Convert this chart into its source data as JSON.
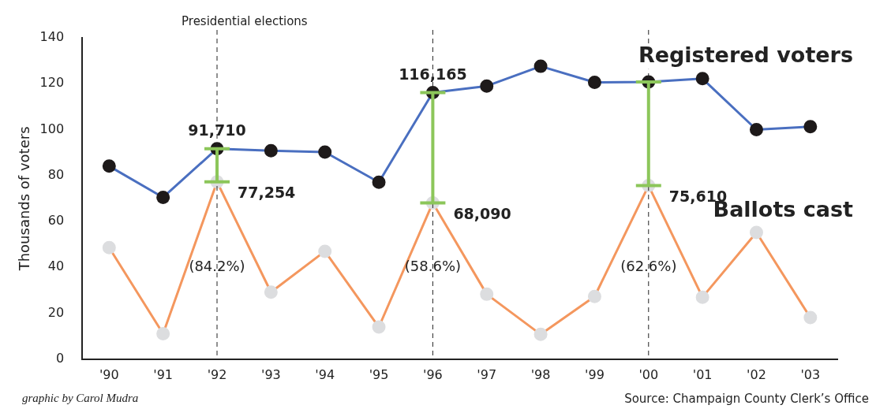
{
  "chart_data": {
    "type": "line",
    "ylabel": "Thousands of voters",
    "categories": [
      "'90",
      "'91",
      "'92",
      "'93",
      "'94",
      "'95",
      "'96",
      "'97",
      "'98",
      "'99",
      "'00",
      "'01",
      "'02",
      "'03"
    ],
    "series": [
      {
        "name": "Registered voters",
        "color": "#4a6fc0",
        "values": [
          84.1,
          70.5,
          91.71,
          90.8,
          90.2,
          77.1,
          116.165,
          119,
          127.6,
          120.6,
          120.8,
          122.2,
          100,
          101.3
        ]
      },
      {
        "name": "Ballots cast",
        "color": "#f4975e",
        "values": [
          48.6,
          11.1,
          77.254,
          29.2,
          47,
          14,
          68.09,
          28.3,
          10.8,
          27.3,
          75.61,
          27,
          55.2,
          18.1
        ],
        "errors": [
          null,
          null,
          [
            77.254,
            91.71
          ],
          null,
          null,
          null,
          [
            68.09,
            116.165
          ],
          null,
          null,
          null,
          [
            75.61,
            120.8
          ],
          null,
          null,
          null
        ]
      }
    ],
    "ylim": [
      0,
      140
    ],
    "yticks": [
      0,
      20,
      40,
      60,
      80,
      100,
      120,
      140
    ],
    "grid": false,
    "legend": false,
    "marker": "circle",
    "line_style": "solid",
    "ref_lines": [
      {
        "axis": "x",
        "value": "'92",
        "label": "Presidential elections",
        "line_style": "dashed"
      },
      {
        "axis": "x",
        "value": "'96",
        "line_style": "dashed"
      },
      {
        "axis": "x",
        "value": "'00",
        "line_style": "dashed"
      }
    ],
    "annotations": [
      {
        "text": "91,710",
        "x": "'92",
        "y": 91.71
      },
      {
        "text": "116,165",
        "x": "'96",
        "y": 116.165
      },
      {
        "text": "77,254",
        "x": "'92",
        "y": 77.254
      },
      {
        "text": "68,090",
        "x": "'96",
        "y": 68.09
      },
      {
        "text": "75,610",
        "x": "'00",
        "y": 75.61
      },
      {
        "text": "(84.2%)",
        "x": "'92",
        "y": 40
      },
      {
        "text": "(58.6%)",
        "x": "'96",
        "y": 40
      },
      {
        "text": "(62.6%)",
        "x": "'00",
        "y": 40
      },
      "graphic by Carol Mudra",
      "Source: Champaign County Clerk’s Office"
    ]
  }
}
